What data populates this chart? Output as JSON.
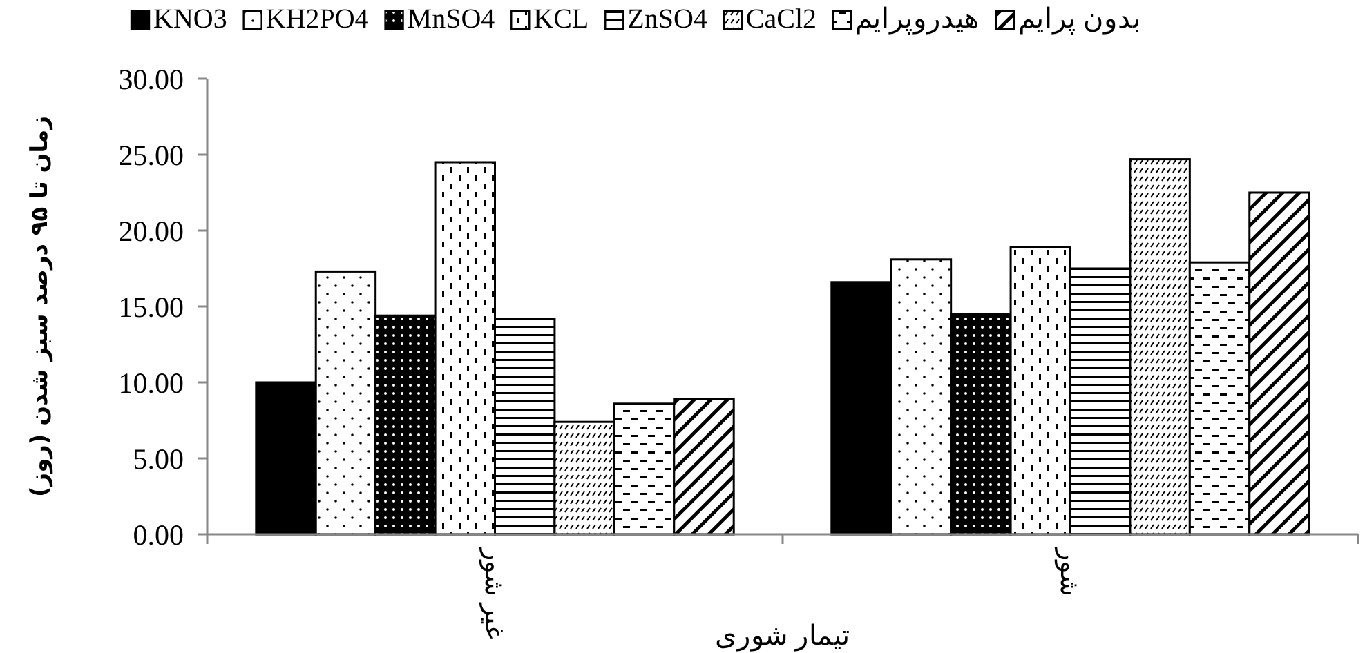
{
  "chart_data": {
    "type": "bar",
    "xlabel": "تیمار شوری",
    "ylabel": "زمان تا ۹۵ درصد سبز شدن (روز)",
    "categories": [
      "غیر شور",
      "شور"
    ],
    "series": [
      {
        "name": "KNO3",
        "color": "#000000",
        "values": [
          10.0,
          16.6
        ]
      },
      {
        "name": "KH2PO4",
        "color": "#000000",
        "values": [
          17.3,
          18.1
        ]
      },
      {
        "name": "MnSO4",
        "color": "#000000",
        "values": [
          14.4,
          14.5
        ]
      },
      {
        "name": "KCL",
        "color": "#000000",
        "values": [
          24.5,
          18.9
        ]
      },
      {
        "name": "ZnSO4",
        "color": "#000000",
        "values": [
          14.2,
          17.5
        ]
      },
      {
        "name": "CaCl2",
        "color": "#000000",
        "values": [
          7.4,
          24.7
        ]
      },
      {
        "name": "هیدروپرایم",
        "color": "#000000",
        "values": [
          8.6,
          17.9
        ]
      },
      {
        "name": "بدون پرایم",
        "color": "#000000",
        "values": [
          8.9,
          22.5
        ]
      }
    ],
    "ylim": [
      0,
      30
    ],
    "yticks": [
      {
        "value": 0,
        "label": "0.00"
      },
      {
        "value": 5,
        "label": "5.00"
      },
      {
        "value": 10,
        "label": "10.00"
      },
      {
        "value": 15,
        "label": "15.00"
      },
      {
        "value": 20,
        "label": "20.00"
      },
      {
        "value": 25,
        "label": "25.00"
      },
      {
        "value": 30,
        "label": "30.00"
      }
    ],
    "grid": false,
    "legend": "top"
  }
}
